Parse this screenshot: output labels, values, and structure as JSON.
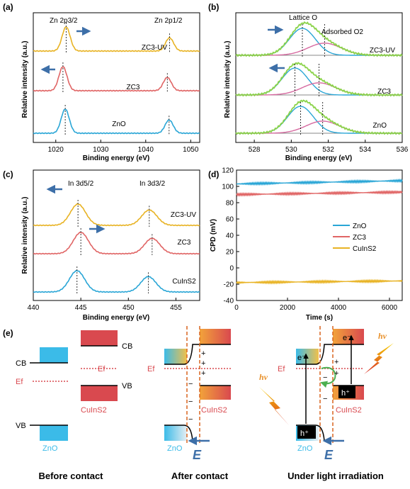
{
  "colors": {
    "yellow": "#e8b324",
    "red": "#e06565",
    "blue": "#2aa6d6",
    "green": "#8bd34a",
    "pink": "#d66aa0",
    "arrow": "#3d6fa8",
    "dash": "#d9641e",
    "cis": "#d9494f",
    "zno": "#3bbbe8"
  },
  "panels": {
    "a": {
      "letter": "(a)",
      "xlabel": "Binding energy (eV)",
      "ylabel": "Relative intensity (a.u.)",
      "peak1": "Zn 2p3/2",
      "peak2": "Zn 2p1/2",
      "series": [
        "ZC3-UV",
        "ZC3",
        "ZnO"
      ],
      "xticks": [
        "1020",
        "1030",
        "1040",
        "1050"
      ]
    },
    "b": {
      "letter": "(b)",
      "xlabel": "Binding energy (eV)",
      "ylabel": "Relative intensity (a.u.)",
      "peak1": "Lattice O",
      "peak2": "Adsorbed O2",
      "series": [
        "ZC3-UV",
        "ZC3",
        "ZnO"
      ],
      "xticks": [
        "528",
        "530",
        "532",
        "534",
        "536"
      ]
    },
    "c": {
      "letter": "(c)",
      "xlabel": "Binding energy (eV)",
      "ylabel": "Relative intensity (a.u.)",
      "peak1": "In 3d5/2",
      "peak2": "In 3d3/2",
      "series": [
        "ZC3-UV",
        "ZC3",
        "CuInS2"
      ],
      "xticks": [
        "440",
        "445",
        "450",
        "455"
      ]
    },
    "d": {
      "letter": "(d)",
      "xlabel": "Time (s)",
      "ylabel": "CPD (mV)",
      "yticks": [
        "120",
        "100",
        "80",
        "60",
        "40",
        "20",
        "0",
        "-20",
        "-40"
      ],
      "xticks": [
        "0",
        "2000",
        "4000",
        "6000"
      ],
      "legend": [
        "ZnO",
        "ZC3",
        "CuInS2"
      ]
    },
    "e": {
      "letter": "(e)",
      "cb": "CB",
      "vb": "VB",
      "ef": "Ef",
      "ef_cis": "Ef",
      "zno": "ZnO",
      "cis": "CuInS2",
      "field": "E",
      "hv": "hν",
      "electron": "e⁻",
      "hole": "h⁺",
      "plus": "+",
      "minus": "−",
      "captions": [
        "Before contact",
        "After contact",
        "Under light irradiation"
      ]
    }
  },
  "chart_data": [
    {
      "panel": "a",
      "type": "line",
      "xlabel": "Binding energy (eV)",
      "ylabel": "Relative intensity (a.u.)",
      "xlim": [
        1015,
        1052
      ],
      "series": [
        {
          "name": "ZnO",
          "peaks": [
            1022.1,
            1045.2
          ]
        },
        {
          "name": "ZC3",
          "peaks": [
            1021.6,
            1044.8
          ]
        },
        {
          "name": "ZC3-UV",
          "peaks": [
            1022.3,
            1045.3
          ]
        }
      ]
    },
    {
      "panel": "b",
      "type": "line",
      "xlabel": "Binding energy (eV)",
      "ylabel": "Relative intensity (a.u.)",
      "xlim": [
        527,
        536
      ],
      "series": [
        {
          "name": "ZnO",
          "peaks": [
            530.5,
            531.7
          ]
        },
        {
          "name": "ZC3",
          "peaks": [
            530.2,
            531.5
          ]
        },
        {
          "name": "ZC3-UV",
          "peaks": [
            530.6,
            531.8
          ]
        }
      ]
    },
    {
      "panel": "c",
      "type": "line",
      "xlabel": "Binding energy (eV)",
      "ylabel": "Relative intensity (a.u.)",
      "xlim": [
        440,
        457.5
      ],
      "series": [
        {
          "name": "CuInS2",
          "peaks": [
            444.6,
            452.1
          ]
        },
        {
          "name": "ZC3",
          "peaks": [
            445.0,
            452.5
          ]
        },
        {
          "name": "ZC3-UV",
          "peaks": [
            444.7,
            452.2
          ]
        }
      ]
    },
    {
      "panel": "d",
      "type": "line",
      "xlabel": "Time (s)",
      "ylabel": "CPD (mV)",
      "xlim": [
        0,
        6500
      ],
      "ylim": [
        -40,
        120
      ],
      "series": [
        {
          "name": "ZnO",
          "x": [
            0,
            6500
          ],
          "y": [
            103,
            107
          ]
        },
        {
          "name": "ZC3",
          "x": [
            0,
            6500
          ],
          "y": [
            90,
            93
          ]
        },
        {
          "name": "CuInS2",
          "x": [
            0,
            6500
          ],
          "y": [
            -18,
            -16
          ]
        }
      ]
    }
  ]
}
